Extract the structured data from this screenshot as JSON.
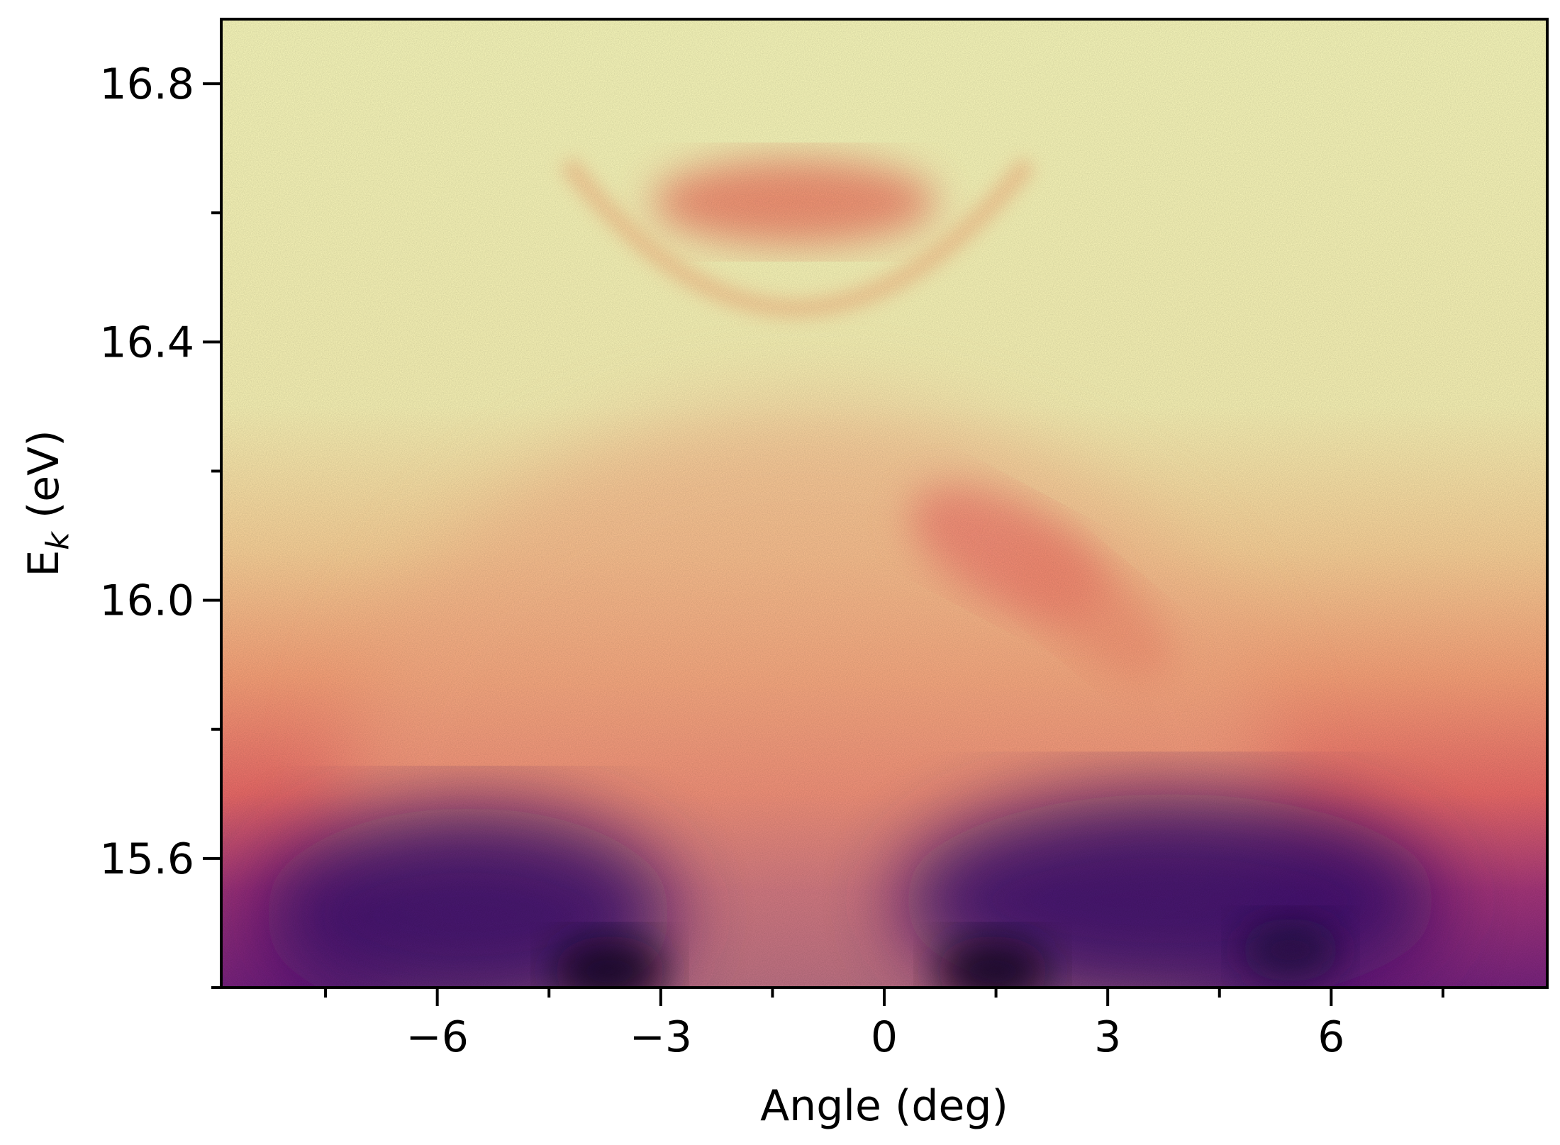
{
  "chart_data": {
    "type": "heatmap",
    "title": "",
    "xlabel": "Angle (deg)",
    "ylabel_base": "E",
    "ylabel_subscript": "k",
    "ylabel_unit": " (eV)",
    "xlim": [
      -8.9,
      8.9
    ],
    "ylim": [
      15.4,
      16.9
    ],
    "x_ticks": [
      {
        "value": -6,
        "label": "−6"
      },
      {
        "value": -3,
        "label": "−3"
      },
      {
        "value": 0,
        "label": "0"
      },
      {
        "value": 3,
        "label": "3"
      },
      {
        "value": 6,
        "label": "6"
      }
    ],
    "x_minor_ticks": [
      -7.5,
      -4.5,
      -1.5,
      1.5,
      4.5,
      7.5
    ],
    "y_ticks": [
      {
        "value": 15.6,
        "label": "15.6"
      },
      {
        "value": 16.0,
        "label": "16.0"
      },
      {
        "value": 16.4,
        "label": "16.4"
      },
      {
        "value": 16.8,
        "label": "16.8"
      }
    ],
    "y_minor_ticks": [
      15.4,
      15.8,
      16.2,
      16.6
    ],
    "colormap": "magma",
    "grid": false,
    "colors": {
      "low": "#000004",
      "mid_dark": "#3b0f70",
      "mid": "#8c2981",
      "mid_light": "#de4968",
      "high_mid": "#fe9f6d",
      "high": "#fcfdbf"
    }
  }
}
